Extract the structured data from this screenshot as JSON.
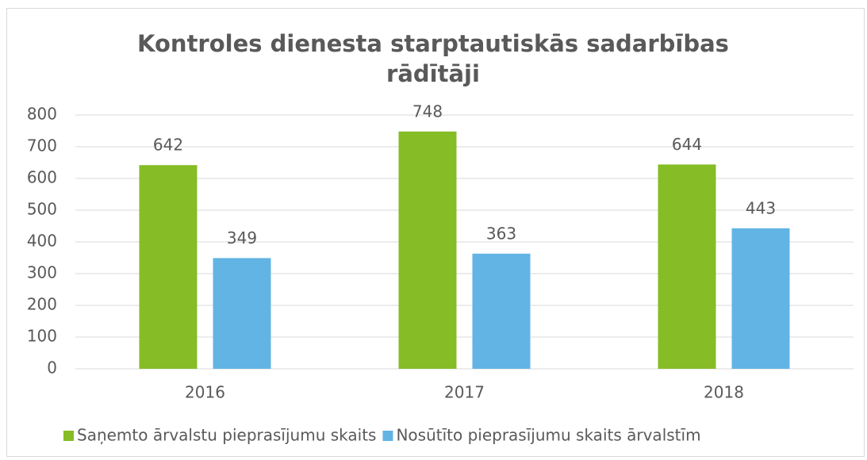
{
  "chart_data": {
    "type": "bar",
    "title": "Kontroles dienesta starptautiskās sadarbības rādītāji",
    "categories": [
      "2016",
      "2017",
      "2018"
    ],
    "series": [
      {
        "name": "Saņemto ārvalstu pieprasījumu skaits",
        "color": "#86bc25",
        "values": [
          642,
          748,
          644
        ]
      },
      {
        "name": "Nosūtīto pieprasījumu skaits ārvalstīm",
        "color": "#62b4e4",
        "values": [
          349,
          363,
          443
        ]
      }
    ],
    "ylim": [
      0,
      800
    ],
    "yticks": [
      0,
      100,
      200,
      300,
      400,
      500,
      600,
      700,
      800
    ],
    "grid": true,
    "legend": "bottom"
  }
}
